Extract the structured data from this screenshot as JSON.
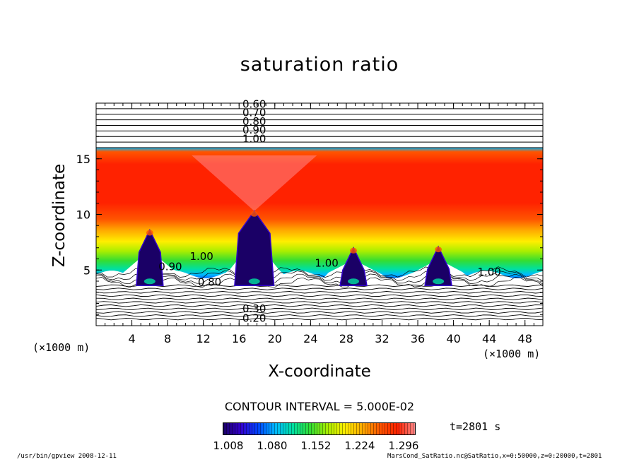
{
  "chart_data": {
    "type": "heatmap",
    "title": "saturation ratio",
    "xlabel": "X-coordinate",
    "ylabel": "Z-coordinate",
    "x_unit_label": "(×1000 m)",
    "xlim": [
      0,
      50
    ],
    "ylim": [
      0,
      20
    ],
    "x_ticks": [
      4,
      8,
      12,
      16,
      20,
      24,
      28,
      32,
      36,
      40,
      44,
      48
    ],
    "y_ticks": [
      5,
      10,
      15
    ],
    "upper_contour_labels": [
      "0.60",
      "0.70",
      "0.80",
      "0.90",
      "1.00"
    ],
    "lower_contour_labels": [
      "0.30",
      "0.20"
    ],
    "inline_contour_labels": [
      {
        "text": "1.00",
        "x": 11.8,
        "z": 5.9
      },
      {
        "text": "0.90",
        "x": 8.3,
        "z": 5.0
      },
      {
        "text": "0.80",
        "x": 12.7,
        "z": 3.6
      },
      {
        "text": "1.00",
        "x": 25.8,
        "z": 5.3
      },
      {
        "text": "1.00",
        "x": 44.0,
        "z": 4.5
      }
    ],
    "cloud_tops": [
      {
        "x": 6.0,
        "top_z": 8.6
      },
      {
        "x": 17.7,
        "top_z": 10.3
      },
      {
        "x": 28.8,
        "top_z": 7.0
      },
      {
        "x": 38.3,
        "top_z": 7.1
      }
    ],
    "band_levels_z": {
      "moist_top": 16.0,
      "red_layer": [
        10.5,
        15.3
      ],
      "dry_base": 3.6
    },
    "colorbar": {
      "min": 1.008,
      "max": 1.296,
      "tick_labels": [
        "1.008",
        "1.080",
        "1.152",
        "1.224",
        "1.296"
      ],
      "colors": [
        "#1a0066",
        "#3300cc",
        "#0044ff",
        "#00bbff",
        "#00e0a0",
        "#33dd33",
        "#aaee00",
        "#ffee00",
        "#ffaa00",
        "#ff5500",
        "#ff2200",
        "#ff8888"
      ]
    },
    "contour_interval": "CONTOUR INTERVAL = 5.000E-02",
    "time_label": "t=2801 s"
  },
  "footer": {
    "left": "/usr/bin/gpview  2008-12-11",
    "right": "MarsCond_SatRatio.nc@SatRatio,x=0:50000,z=0:20000,t=2801"
  }
}
